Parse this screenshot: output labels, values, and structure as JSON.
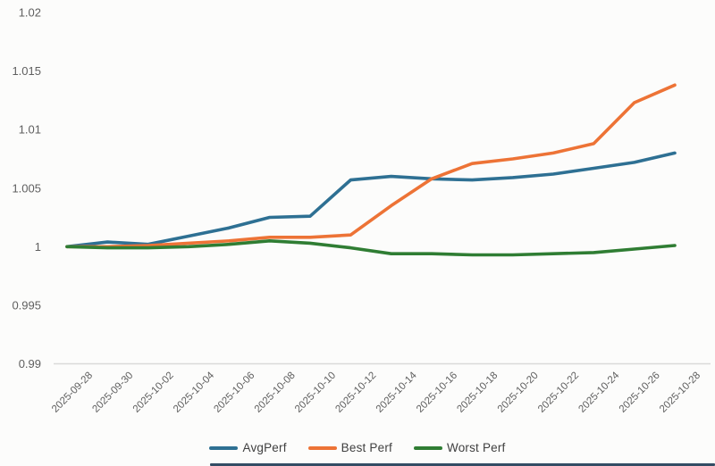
{
  "chart_data": {
    "type": "line",
    "title": "",
    "xlabel": "",
    "ylabel": "",
    "x_tick_labels": [
      "2025-09-28",
      "2025-09-30",
      "2025-10-02",
      "2025-10-04",
      "2025-10-06",
      "2025-10-08",
      "2025-10-10",
      "2025-10-12",
      "2025-10-14",
      "2025-10-16",
      "2025-10-18",
      "2025-10-20",
      "2025-10-22",
      "2025-10-24",
      "2025-10-26",
      "2025-10-28"
    ],
    "y_tick_labels": [
      "1.02",
      "1.015",
      "1.01",
      "1.005",
      "1",
      "0.995",
      "0.99"
    ],
    "ylim": [
      0.99,
      1.02
    ],
    "grid": "baseline-only",
    "legend_position": "bottom-center",
    "series": [
      {
        "name": "AvgPerf",
        "color": "#2e7093",
        "values": [
          1.0,
          1.0004,
          1.0002,
          1.0009,
          1.0016,
          1.0025,
          1.0026,
          1.0057,
          1.006,
          1.0058,
          1.0057,
          1.0059,
          1.0062,
          1.0067,
          1.0072,
          1.008
        ]
      },
      {
        "name": "Best Perf",
        "color": "#ed7336",
        "values": [
          1.0,
          1.0,
          1.0001,
          1.0003,
          1.0005,
          1.0008,
          1.0008,
          1.001,
          1.0035,
          1.0058,
          1.0071,
          1.0075,
          1.008,
          1.0088,
          1.0123,
          1.0138
        ]
      },
      {
        "name": "Worst Perf",
        "color": "#2f7d33",
        "values": [
          1.0,
          0.9999,
          0.9999,
          1.0,
          1.0002,
          1.0005,
          1.0003,
          0.9999,
          0.9994,
          0.9994,
          0.9993,
          0.9993,
          0.9994,
          0.9995,
          0.9998,
          1.0001
        ]
      }
    ]
  },
  "colors": {
    "axis_text": "#5f5f5f",
    "axis_line": "#d9d9d9",
    "background": "#fcfcfb",
    "bottom_bar": "#17334e"
  }
}
